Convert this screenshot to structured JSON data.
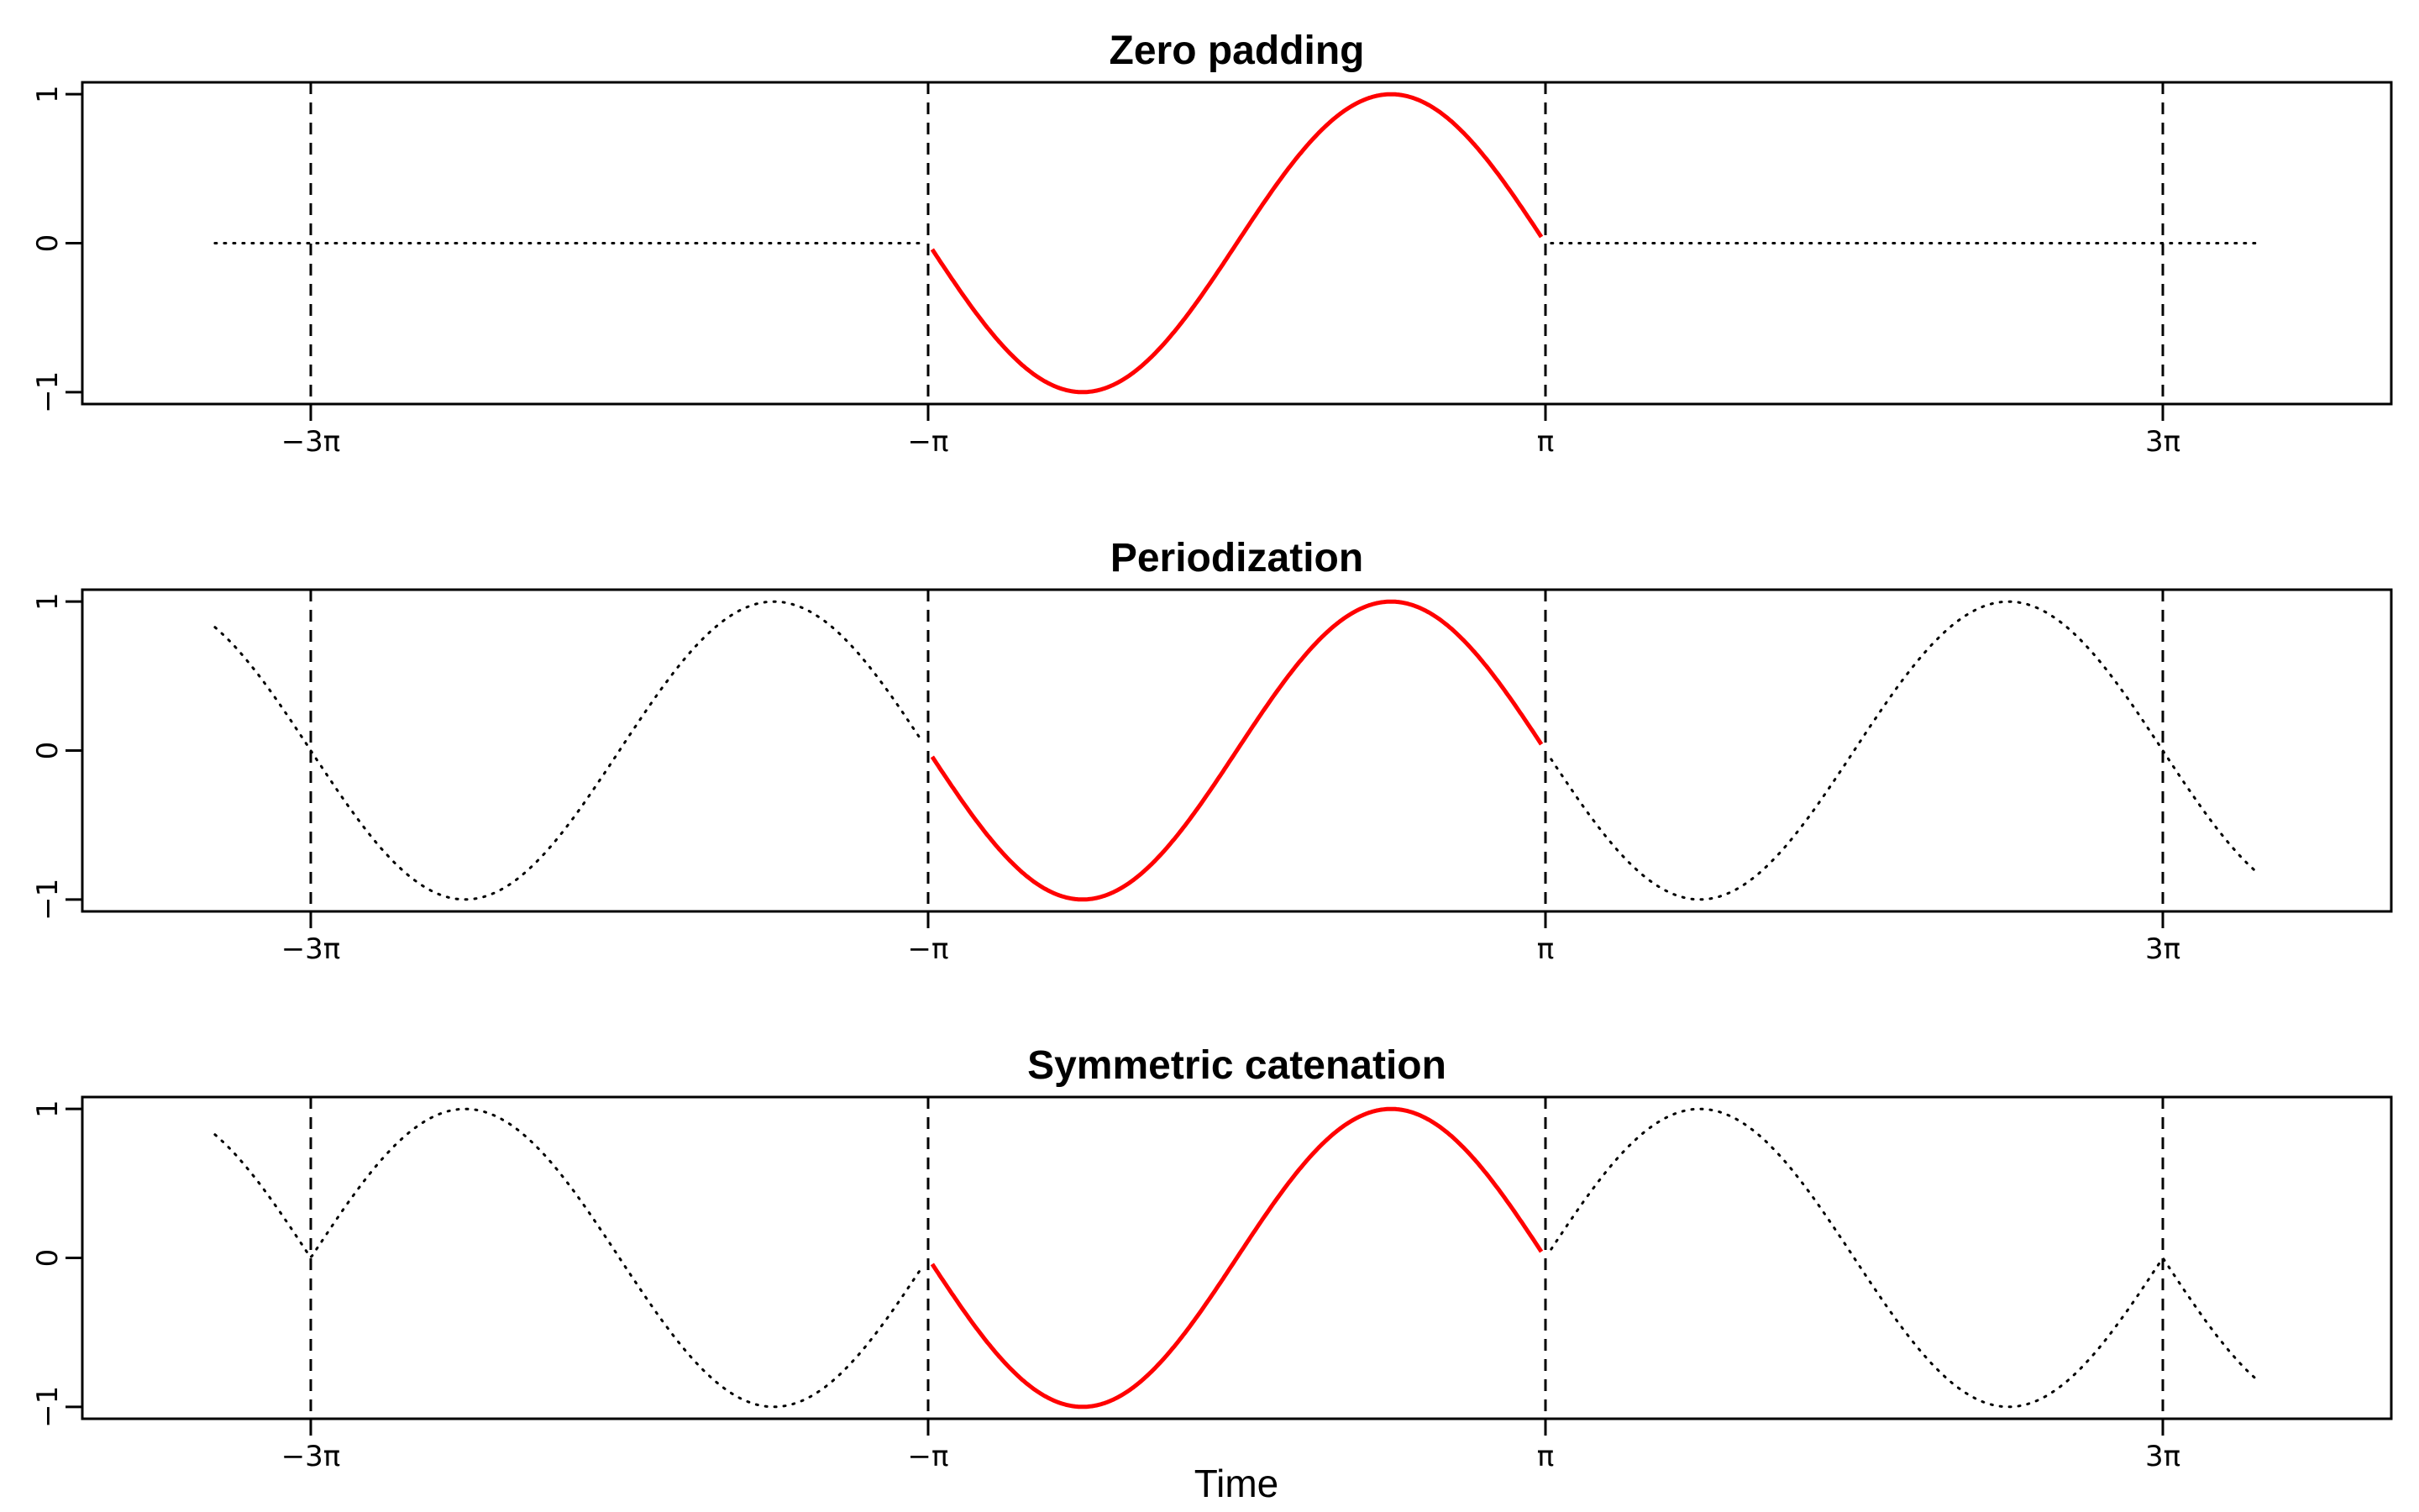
{
  "figure": {
    "xlabel": "Time"
  },
  "colors": {
    "signal": "#ff0000",
    "extension": "#000000",
    "frame": "#000000"
  },
  "chart_data": [
    {
      "type": "line",
      "title": "Zero padding",
      "xlabel": "",
      "ylabel": "",
      "xlim": [
        -11.75,
        11.75
      ],
      "ylim": [
        -1.08,
        1.08
      ],
      "x_ticks": [
        {
          "value": -9.4248,
          "label": "−3π"
        },
        {
          "value": -3.1416,
          "label": "−π"
        },
        {
          "value": 3.1416,
          "label": "π"
        },
        {
          "value": 9.4248,
          "label": "3π"
        }
      ],
      "y_ticks": [
        {
          "value": -1,
          "label": "−1"
        },
        {
          "value": 0,
          "label": "0"
        },
        {
          "value": 1,
          "label": "1"
        }
      ],
      "vlines": [
        -9.4248,
        -3.1416,
        3.1416,
        9.4248
      ],
      "grid": false,
      "series": [
        {
          "role": "original",
          "style": "solid-red",
          "function": "sin",
          "x_range": [
            -3.1,
            3.1
          ]
        },
        {
          "role": "extension",
          "style": "dotted",
          "function": "zero",
          "x_range": [
            -10.4,
            -3.2
          ]
        },
        {
          "role": "extension",
          "style": "dotted",
          "function": "zero",
          "x_range": [
            3.2,
            10.4
          ]
        }
      ]
    },
    {
      "type": "line",
      "title": "Periodization",
      "xlabel": "",
      "ylabel": "",
      "xlim": [
        -11.75,
        11.75
      ],
      "ylim": [
        -1.08,
        1.08
      ],
      "x_ticks": [
        {
          "value": -9.4248,
          "label": "−3π"
        },
        {
          "value": -3.1416,
          "label": "−π"
        },
        {
          "value": 3.1416,
          "label": "π"
        },
        {
          "value": 9.4248,
          "label": "3π"
        }
      ],
      "y_ticks": [
        {
          "value": -1,
          "label": "−1"
        },
        {
          "value": 0,
          "label": "0"
        },
        {
          "value": 1,
          "label": "1"
        }
      ],
      "vlines": [
        -9.4248,
        -3.1416,
        3.1416,
        9.4248
      ],
      "grid": false,
      "series": [
        {
          "role": "original",
          "style": "solid-red",
          "function": "sin",
          "x_range": [
            -3.1,
            3.1
          ]
        },
        {
          "role": "extension",
          "style": "dotted",
          "function": "periodic",
          "x_range": [
            -10.4,
            -3.2
          ]
        },
        {
          "role": "extension",
          "style": "dotted",
          "function": "periodic",
          "x_range": [
            3.2,
            10.4
          ]
        }
      ]
    },
    {
      "type": "line",
      "title": "Symmetric catenation",
      "xlabel": "Time",
      "ylabel": "",
      "xlim": [
        -11.75,
        11.75
      ],
      "ylim": [
        -1.08,
        1.08
      ],
      "x_ticks": [
        {
          "value": -9.4248,
          "label": "−3π"
        },
        {
          "value": -3.1416,
          "label": "−π"
        },
        {
          "value": 3.1416,
          "label": "π"
        },
        {
          "value": 9.4248,
          "label": "3π"
        }
      ],
      "y_ticks": [
        {
          "value": -1,
          "label": "−1"
        },
        {
          "value": 0,
          "label": "0"
        },
        {
          "value": 1,
          "label": "1"
        }
      ],
      "vlines": [
        -9.4248,
        -3.1416,
        3.1416,
        9.4248
      ],
      "grid": false,
      "series": [
        {
          "role": "original",
          "style": "solid-red",
          "function": "sin",
          "x_range": [
            -3.1,
            3.1
          ]
        },
        {
          "role": "extension",
          "style": "dotted",
          "function": "mirror",
          "x_range": [
            -10.4,
            -3.2
          ]
        },
        {
          "role": "extension",
          "style": "dotted",
          "function": "mirror",
          "x_range": [
            3.2,
            10.4
          ]
        }
      ]
    }
  ]
}
